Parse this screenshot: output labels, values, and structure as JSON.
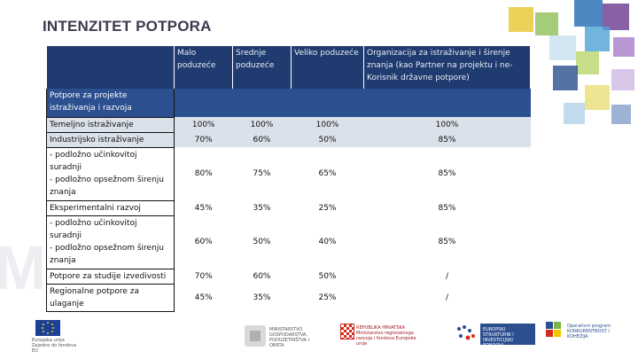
{
  "title": "INTENZITET POTPORA",
  "table": {
    "headers": [
      "",
      "Malo poduzeće",
      "Srednje poduzeće",
      "Veliko poduzeće",
      "Organizacija za istraživanje i širenje znanja (kao Partner na projektu i ne-Korisnik državne potpore)"
    ],
    "rows": [
      {
        "label": "Potpore za projekte istraživanja i razvoja",
        "values": [
          "",
          "",
          "",
          ""
        ]
      },
      {
        "label": "Temeljno istraživanje",
        "values": [
          "100%",
          "100%",
          "100%",
          "100%"
        ]
      },
      {
        "label": "Industrijsko istraživanje",
        "values": [
          "70%",
          "60%",
          "50%",
          "85%"
        ]
      },
      {
        "label": "- podložno učinkovitoj suradnji\n- podložno opsežnom širenju znanja",
        "values": [
          "80%",
          "75%",
          "65%",
          "85%"
        ]
      },
      {
        "label": "Eksperimentalni razvoj",
        "values": [
          "45%",
          "35%",
          "25%",
          "85%"
        ]
      },
      {
        "label": "- podložno učinkovitoj suradnji\n- podložno opsežnom širenju znanja",
        "values": [
          "60%",
          "50%",
          "40%",
          "85%"
        ]
      },
      {
        "label": "Potpore za studije izvedivosti",
        "values": [
          "70%",
          "60%",
          "50%",
          "/"
        ]
      },
      {
        "label": "Regionalne potpore za ulaganje",
        "values": [
          "45%",
          "35%",
          "25%",
          "/"
        ]
      }
    ]
  },
  "footer": {
    "eu_flag_text": "Europska unija Zajedno do fondova EU",
    "ministry_text": "MINISTARSTVO GOSPODARSTVA, PODUZETNIŠTVA I OBRTA",
    "republika_text": "REPUBLIKA HRVATSKA Ministarstvo regionalnoga razvoja i fondova Europske unije",
    "esi_text": "EUROPSKI STRUKTURNI I INVESTICIJSKI FONDOVI",
    "op_text": "Operativni program KONKURENTNOST I KOHEZIJA"
  },
  "colors": {
    "header_dark": "#1f3b6f",
    "row_blue": "#2b4f8f",
    "row_light": "#dbe1ea",
    "accent_yellow": "#f2c500",
    "accent_green": "#7ab648",
    "accent_purple": "#5a2d82"
  }
}
